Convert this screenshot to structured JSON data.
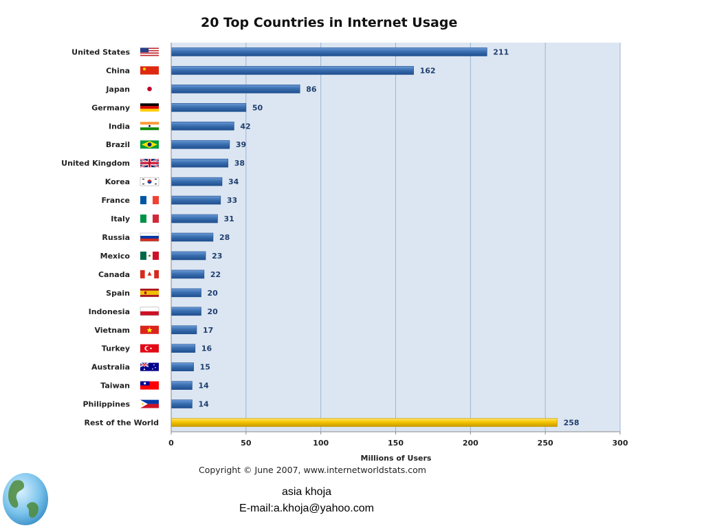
{
  "chart_data": {
    "type": "bar",
    "orientation": "horizontal",
    "title": "20 Top Countries in Internet Usage",
    "xlabel": "Millions of Users",
    "ylabel": "",
    "xlim": [
      0,
      300
    ],
    "x_ticks": [
      0,
      50,
      100,
      150,
      200,
      250,
      300
    ],
    "grid": true,
    "categories": [
      "United States",
      "China",
      "Japan",
      "Germany",
      "India",
      "Brazil",
      "United Kingdom",
      "Korea",
      "France",
      "Italy",
      "Russia",
      "Mexico",
      "Canada",
      "Spain",
      "Indonesia",
      "Vietnam",
      "Turkey",
      "Australia",
      "Taiwan",
      "Philippines",
      "Rest of the World"
    ],
    "values": [
      211,
      162,
      86,
      50,
      42,
      39,
      38,
      34,
      33,
      31,
      28,
      23,
      22,
      20,
      20,
      17,
      16,
      15,
      14,
      14,
      258
    ],
    "flags": [
      "us-flag-icon",
      "china-flag-icon",
      "japan-flag-icon",
      "germany-flag-icon",
      "india-flag-icon",
      "brazil-flag-icon",
      "uk-flag-icon",
      "korea-flag-icon",
      "france-flag-icon",
      "italy-flag-icon",
      "russia-flag-icon",
      "mexico-flag-icon",
      "canada-flag-icon",
      "spain-flag-icon",
      "indonesia-flag-icon",
      "vietnam-flag-icon",
      "turkey-flag-icon",
      "australia-flag-icon",
      "taiwan-flag-icon",
      "philippines-flag-icon",
      ""
    ],
    "colors": {
      "bar": "#3a6fb0",
      "bar_dark": "#1f4f8f",
      "highlight_bar": "#f5c400",
      "highlight_bar_dark": "#c79a00",
      "plot_bg": "#dce6f2",
      "grid": "#9bb3d4"
    }
  },
  "copyright": "Copyright © June 2007, www.internetworldstats.com",
  "footer": {
    "name": "asia khoja",
    "email": "E-mail:a.khoja@yahoo.com"
  },
  "decor": {
    "globe": "globe-icon"
  }
}
